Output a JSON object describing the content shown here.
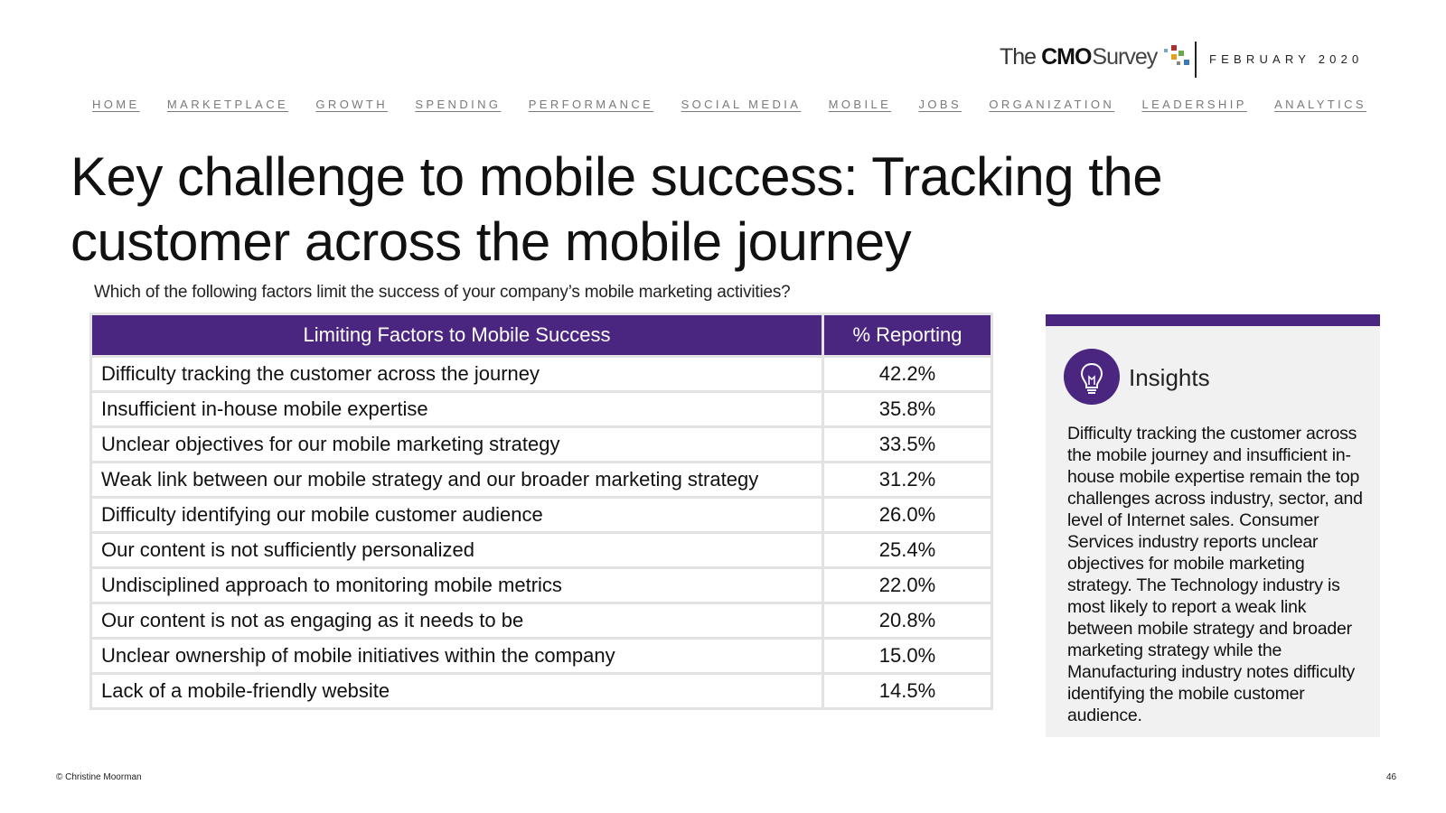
{
  "header": {
    "logo": {
      "the": "The",
      "cmo": "CMO",
      "survey": "Survey"
    },
    "date": "FEBRUARY 2020"
  },
  "nav": [
    "HOME",
    "MARKETPLACE",
    "GROWTH",
    "SPENDING",
    "PERFORMANCE",
    "SOCIAL MEDIA",
    "MOBILE",
    "JOBS",
    "ORGANIZATION",
    "LEADERSHIP",
    "ANALYTICS"
  ],
  "title": "Key challenge to mobile success: Tracking the customer across the mobile journey",
  "question": "Which of the following factors limit the success of your company’s mobile marketing activities?",
  "table": {
    "headers": [
      "Limiting Factors to Mobile Success",
      "% Reporting"
    ],
    "rows": [
      [
        "Difficulty tracking the customer across the journey",
        "42.2%"
      ],
      [
        "Insufficient in-house mobile expertise",
        "35.8%"
      ],
      [
        "Unclear objectives for our mobile marketing strategy",
        "33.5%"
      ],
      [
        "Weak link between our mobile strategy and our broader marketing strategy",
        "31.2%"
      ],
      [
        "Difficulty identifying our mobile customer audience",
        "26.0%"
      ],
      [
        "Our content is not sufficiently personalized",
        "25.4%"
      ],
      [
        "Undisciplined approach to monitoring mobile metrics",
        "22.0%"
      ],
      [
        "Our content is not as engaging as it needs to be",
        "20.8%"
      ],
      [
        "Unclear ownership of mobile initiatives within the company",
        "15.0%"
      ],
      [
        "Lack of a mobile-friendly website",
        "14.5%"
      ]
    ]
  },
  "insights": {
    "title": "Insights",
    "icon": "lightbulb-icon",
    "text": "Difficulty tracking the customer across the mobile journey and insufficient in-house mobile expertise remain the top challenges across industry, sector, and level of Internet sales. Consumer Services industry reports unclear objectives for mobile marketing strategy. The Technology industry is most likely to report a weak link between mobile strategy and broader marketing strategy while the Manufacturing industry notes difficulty identifying the mobile customer audience."
  },
  "footer": {
    "copyright": "© Christine Moorman",
    "page_number": "46"
  },
  "colors": {
    "brand_purple": "#4a2680",
    "panel_gray": "#f1f1f1",
    "border_gray": "#e2e2e2",
    "nav_gray": "#7a7a7a"
  }
}
